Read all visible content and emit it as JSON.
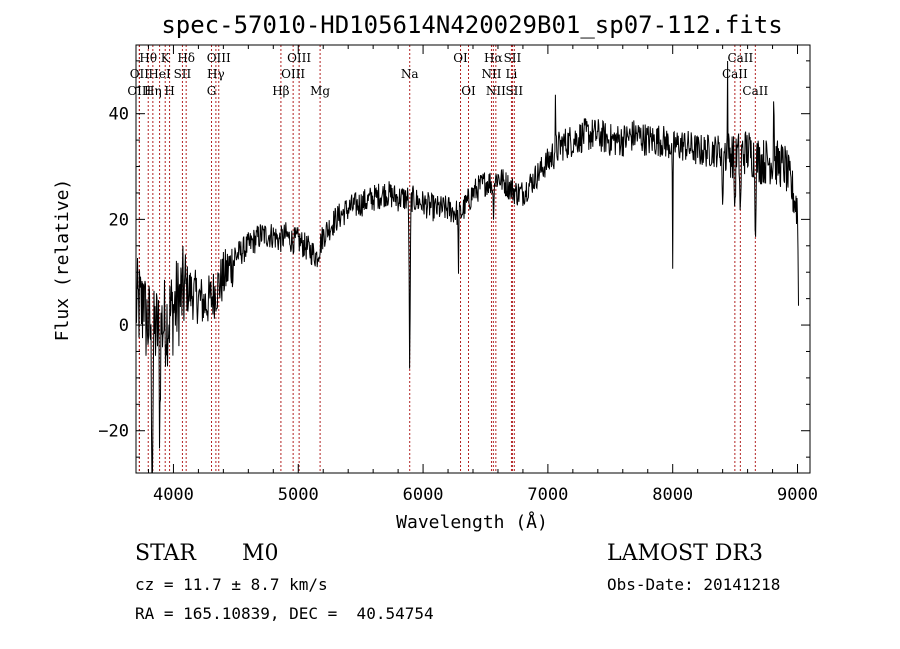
{
  "chart_data": {
    "type": "line",
    "title": "spec-57010-HD105614N420029B01_sp07-112.fits",
    "xlabel": "Wavelength (Å)",
    "ylabel": "Flux (relative)",
    "xlim": [
      3700,
      9100
    ],
    "ylim": [
      -28,
      53
    ],
    "xticks": [
      4000,
      5000,
      6000,
      7000,
      8000,
      9000
    ],
    "yticks": [
      -20,
      0,
      20,
      40
    ],
    "grid": false,
    "series": [
      {
        "name": "flux",
        "anchors": [
          [
            3700,
            4
          ],
          [
            3750,
            3
          ],
          [
            3800,
            0
          ],
          [
            3850,
            -1
          ],
          [
            3900,
            0
          ],
          [
            3950,
            1
          ],
          [
            4000,
            3
          ],
          [
            4050,
            5
          ],
          [
            4100,
            7
          ],
          [
            4150,
            6
          ],
          [
            4200,
            5
          ],
          [
            4250,
            4
          ],
          [
            4300,
            5
          ],
          [
            4350,
            7
          ],
          [
            4400,
            9
          ],
          [
            4450,
            11
          ],
          [
            4500,
            13
          ],
          [
            4550,
            14
          ],
          [
            4600,
            15
          ],
          [
            4650,
            16
          ],
          [
            4700,
            17
          ],
          [
            4750,
            17
          ],
          [
            4800,
            17
          ],
          [
            4850,
            16
          ],
          [
            4900,
            17
          ],
          [
            4950,
            16
          ],
          [
            5000,
            16
          ],
          [
            5050,
            15
          ],
          [
            5100,
            14
          ],
          [
            5150,
            13
          ],
          [
            5200,
            17
          ],
          [
            5300,
            20
          ],
          [
            5400,
            22
          ],
          [
            5500,
            23
          ],
          [
            5600,
            24
          ],
          [
            5700,
            25
          ],
          [
            5800,
            24
          ],
          [
            5900,
            24
          ],
          [
            6000,
            23
          ],
          [
            6100,
            22
          ],
          [
            6200,
            22
          ],
          [
            6300,
            21
          ],
          [
            6400,
            25
          ],
          [
            6500,
            27
          ],
          [
            6550,
            27
          ],
          [
            6600,
            28
          ],
          [
            6650,
            27
          ],
          [
            6700,
            26
          ],
          [
            6750,
            25
          ],
          [
            6800,
            25
          ],
          [
            6900,
            28
          ],
          [
            7000,
            31
          ],
          [
            7100,
            34
          ],
          [
            7200,
            35
          ],
          [
            7300,
            36
          ],
          [
            7400,
            36
          ],
          [
            7500,
            35
          ],
          [
            7600,
            35
          ],
          [
            7700,
            36
          ],
          [
            7800,
            35
          ],
          [
            7900,
            35
          ],
          [
            8000,
            34
          ],
          [
            8100,
            34
          ],
          [
            8200,
            33
          ],
          [
            8300,
            33
          ],
          [
            8400,
            33
          ],
          [
            8500,
            32
          ],
          [
            8600,
            33
          ],
          [
            8700,
            31
          ],
          [
            8800,
            31
          ],
          [
            8900,
            30
          ],
          [
            9000,
            22
          ],
          [
            9010,
            0
          ]
        ],
        "noise_regions": [
          {
            "from": 3700,
            "to": 4100,
            "amplitude": 9
          },
          {
            "from": 4100,
            "to": 4500,
            "amplitude": 5
          },
          {
            "from": 4500,
            "to": 7000,
            "amplitude": 2.6
          },
          {
            "from": 7000,
            "to": 8400,
            "amplitude": 3.2
          },
          {
            "from": 8400,
            "to": 9010,
            "amplitude": 4.5
          }
        ],
        "features": [
          {
            "x": 5893,
            "depth": 32,
            "width": 6
          },
          {
            "x": 6283,
            "depth": 10,
            "width": 4
          },
          {
            "x": 6563,
            "depth": 5,
            "width": 6
          },
          {
            "x": 8000,
            "depth": 22,
            "width": 4
          },
          {
            "x": 8498,
            "depth": 10,
            "width": 6
          },
          {
            "x": 8542,
            "depth": 12,
            "width": 6
          },
          {
            "x": 8662,
            "depth": 12,
            "width": 6
          },
          {
            "x": 8400,
            "depth": 14,
            "width": 4
          },
          {
            "x": 3830,
            "depth": 25,
            "width": 8
          },
          {
            "x": 3890,
            "depth": 18,
            "width": 6
          }
        ],
        "peaks": [
          {
            "x": 8440,
            "height": 16,
            "width": 3
          },
          {
            "x": 8810,
            "height": 18,
            "width": 3
          },
          {
            "x": 7060,
            "height": 8,
            "width": 3
          },
          {
            "x": 3760,
            "height": 10,
            "width": 4
          }
        ]
      }
    ],
    "line_marks": [
      {
        "label": "Hθ",
        "x": 3798,
        "row": 1
      },
      {
        "label": "OII",
        "x": 3727,
        "row": 2
      },
      {
        "label": "OIII",
        "x": 3727,
        "row": 3
      },
      {
        "label": "K",
        "x": 3934,
        "row": 1
      },
      {
        "label": "HeI",
        "x": 3889,
        "row": 2
      },
      {
        "label": "Hη",
        "x": 3835,
        "row": 3
      },
      {
        "label": "H",
        "x": 3969,
        "row": 3
      },
      {
        "label": "Hδ",
        "x": 4102,
        "row": 1
      },
      {
        "label": "SII",
        "x": 4072,
        "row": 2
      },
      {
        "label": "OIII",
        "x": 4363,
        "row": 1
      },
      {
        "label": "Hγ",
        "x": 4340,
        "row": 2
      },
      {
        "label": "G",
        "x": 4305,
        "row": 3
      },
      {
        "label": "OIII",
        "x": 5007,
        "row": 1
      },
      {
        "label": "OIII",
        "x": 4959,
        "row": 2
      },
      {
        "label": "Hβ",
        "x": 4861,
        "row": 3
      },
      {
        "label": "Mg",
        "x": 5175,
        "row": 3
      },
      {
        "label": "Na",
        "x": 5893,
        "row": 2
      },
      {
        "label": "OI",
        "x": 6300,
        "row": 1
      },
      {
        "label": "OI",
        "x": 6364,
        "row": 3
      },
      {
        "label": "Hα",
        "x": 6563,
        "row": 1
      },
      {
        "label": "SII",
        "x": 6716,
        "row": 1
      },
      {
        "label": "NII",
        "x": 6548,
        "row": 2
      },
      {
        "label": "Li",
        "x": 6708,
        "row": 2
      },
      {
        "label": "NII",
        "x": 6583,
        "row": 3
      },
      {
        "label": "SII",
        "x": 6731,
        "row": 3
      },
      {
        "label": "CaII",
        "x": 8542,
        "row": 1
      },
      {
        "label": "CaII",
        "x": 8498,
        "row": 2
      },
      {
        "label": "CaII",
        "x": 8662,
        "row": 3
      }
    ]
  },
  "info": {
    "object_class": "STAR",
    "subclass": "M0",
    "survey": "LAMOST DR3",
    "redshift": "cz = 11.7 ± 8.7 km/s",
    "obs_date": "Obs-Date: 20141218",
    "coords": "RA = 165.10839, DEC =  40.54754"
  },
  "colors": {
    "line_marks": "#b22222",
    "spectrum": "#000000",
    "axes": "#000000"
  }
}
